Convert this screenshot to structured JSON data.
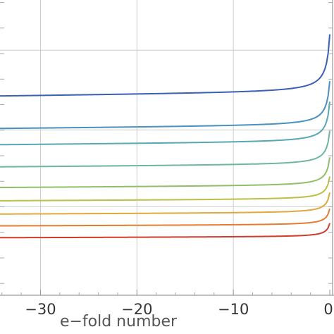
{
  "chart_data": {
    "type": "line",
    "title": "",
    "xlabel": "e−fold number",
    "ylabel": "",
    "xlim": [
      -34.2,
      0
    ],
    "ylim": [
      0,
      1
    ],
    "grid": true,
    "x_ticks": [
      {
        "value": -30,
        "label": "−30"
      },
      {
        "value": -20,
        "label": "−20"
      },
      {
        "value": -10,
        "label": "−10"
      },
      {
        "value": 0,
        "label": "0"
      }
    ],
    "y_gridlines": [
      0.3,
      0.56,
      0.83
    ],
    "series": [
      {
        "color": "#3a5fb5",
        "plateau": 0.675,
        "end": 0.89
      },
      {
        "color": "#4a90c0",
        "plateau": 0.565,
        "end": 0.73
      },
      {
        "color": "#5aa6b6",
        "plateau": 0.51,
        "end": 0.66
      },
      {
        "color": "#6cb89a",
        "plateau": 0.435,
        "end": 0.56
      },
      {
        "color": "#8fbf68",
        "plateau": 0.365,
        "end": 0.47
      },
      {
        "color": "#bcbf46",
        "plateau": 0.32,
        "end": 0.405
      },
      {
        "color": "#e0a93a",
        "plateau": 0.275,
        "end": 0.35
      },
      {
        "color": "#e67c30",
        "plateau": 0.235,
        "end": 0.295
      },
      {
        "color": "#d23a2a",
        "plateau": 0.195,
        "end": 0.245
      }
    ]
  }
}
